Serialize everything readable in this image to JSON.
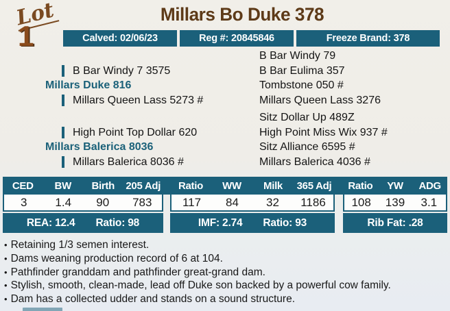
{
  "lot": {
    "label": "Lot",
    "number": "1"
  },
  "header": {
    "title": "Millars Bo Duke 378"
  },
  "info_badges": [
    {
      "label": "Calved: 02/06/23"
    },
    {
      "label": "Reg #: 20845846"
    },
    {
      "label": "Freeze Brand: 378"
    }
  ],
  "pedigree": {
    "sire_group": {
      "parent_sire": "B Bar Windy 7 3575",
      "name": "Millars Duke 816",
      "parent_dam": "Millars Queen Lass 5273 #",
      "ancestors": [
        "B Bar Windy 79",
        "B Bar Eulima 357",
        "Tombstone 050 #",
        "Millars Queen Lass 3276"
      ]
    },
    "dam_group": {
      "parent_sire": "High Point Top Dollar 620",
      "name": "Millars Balerica 8036",
      "parent_dam": "Millars Balerica 8036 #",
      "ancestors": [
        "Sitz Dollar Up 489Z",
        "High Point Miss Wix 937 #",
        "Sitz Alliance 6595 #",
        "Millars Balerica 4036 #"
      ]
    }
  },
  "epd": {
    "headers": [
      "CED",
      "BW",
      "Birth",
      "205 Adj",
      "Ratio",
      "WW",
      "Milk",
      "365 Adj",
      "Ratio",
      "YW",
      "ADG"
    ],
    "values": [
      "3",
      "1.4",
      "90",
      "783",
      "117",
      "84",
      "32",
      "1186",
      "108",
      "139",
      "3.1"
    ],
    "carcass": [
      [
        "REA: 12.4",
        "Ratio: 98"
      ],
      [
        "IMF: 2.74",
        "Ratio: 93"
      ],
      [
        "Rib Fat: .28"
      ]
    ]
  },
  "notes": {
    "marker": "•",
    "items": [
      "Retaining 1/3 semen interest.",
      "Dams weaning production record of 6 at 104.",
      "Pathfinder granddam and pathfinder great-grand dam.",
      "Stylish, smooth, clean-made, lead off Duke son backed by a powerful cow family.",
      "Dam has a collected udder and stands on a sound structure."
    ]
  },
  "colors": {
    "accent_teal": "#1b607a",
    "title_brown": "#5d3a18"
  }
}
